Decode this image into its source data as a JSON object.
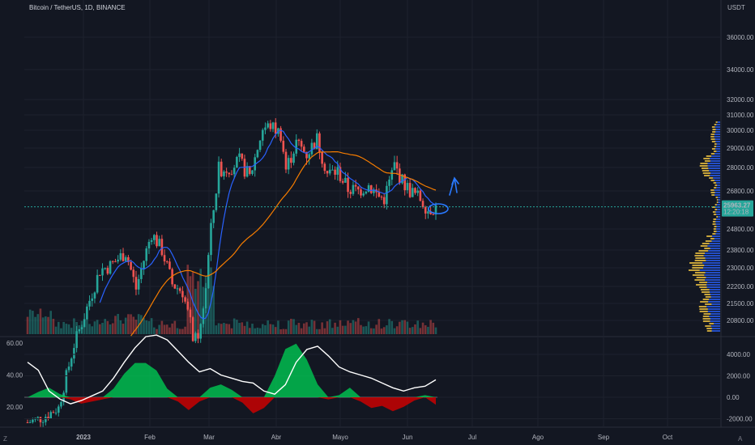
{
  "header": {
    "symbol_label": "Bitcoin / TetherUS, 1D, BINANCE"
  },
  "price_axis": {
    "currency": "USDT"
  },
  "corner": {
    "left": "Z",
    "right": "A"
  },
  "colors": {
    "background": "#131722",
    "grid": "#1e222d",
    "up": "#26a69a",
    "down": "#ef5350",
    "ma_fast": "#2962ff",
    "ma_slow": "#f57c00",
    "last_price_badge": "#26a69a",
    "osc_line": "#ffffff",
    "osc_pos": "#00c853",
    "osc_neg": "#d50000",
    "vp_up": "#2962ff",
    "vp_down": "#f5c842",
    "annotation": "#2979ff"
  },
  "chart_data": [
    {
      "type": "candlestick",
      "title": "Bitcoin / TetherUS, 1D, BINANCE",
      "ylabel": "USDT",
      "price_ticks": [
        "36000.00",
        "34000.00",
        "32000.00",
        "31000.00",
        "30000.00",
        "29000.00",
        "28000.00",
        "26800.00",
        "24800.00",
        "23800.00",
        "23000.00",
        "22200.00",
        "21500.00",
        "20800.00"
      ],
      "x_tick_labels": [
        "2023",
        "Feb",
        "Mar",
        "Abr",
        "Mayo",
        "Jun",
        "Jul",
        "Ago",
        "Sep",
        "Oct"
      ],
      "last_price": "25963.27",
      "countdown": "12:20:18",
      "overlays": [
        "moving average (blue)",
        "moving average (orange)",
        "volume",
        "volume profile"
      ],
      "annotation": "hand-drawn circle and upward arrow near last price",
      "grid": true
    },
    {
      "type": "area",
      "y_ticks_left": [
        "60.00",
        "40.00",
        "20.00"
      ],
      "y_ticks_right": [
        "4000.00",
        "2000.00",
        "0.00",
        "-2000.00"
      ],
      "series": [
        {
          "values": [
            48,
            43,
            30,
            25,
            22,
            24,
            27,
            30,
            38,
            48,
            57,
            64,
            65,
            62,
            55,
            48,
            42,
            44,
            40,
            38,
            36,
            35,
            30,
            28,
            34,
            48,
            56,
            58,
            52,
            45,
            42,
            40,
            38,
            35,
            32,
            30,
            32,
            33,
            37
          ]
        },
        {
          "values": [
            0,
            500,
            900,
            300,
            -200,
            -600,
            -400,
            -200,
            800,
            2200,
            3200,
            3200,
            2500,
            800,
            -400,
            -1200,
            -400,
            900,
            1200,
            700,
            -500,
            -1500,
            -1000,
            2000,
            4500,
            5000,
            3500,
            1200,
            -200,
            200,
            900,
            -400,
            -1000,
            -800,
            -1300,
            -900,
            -300,
            200,
            -700
          ]
        }
      ]
    }
  ]
}
